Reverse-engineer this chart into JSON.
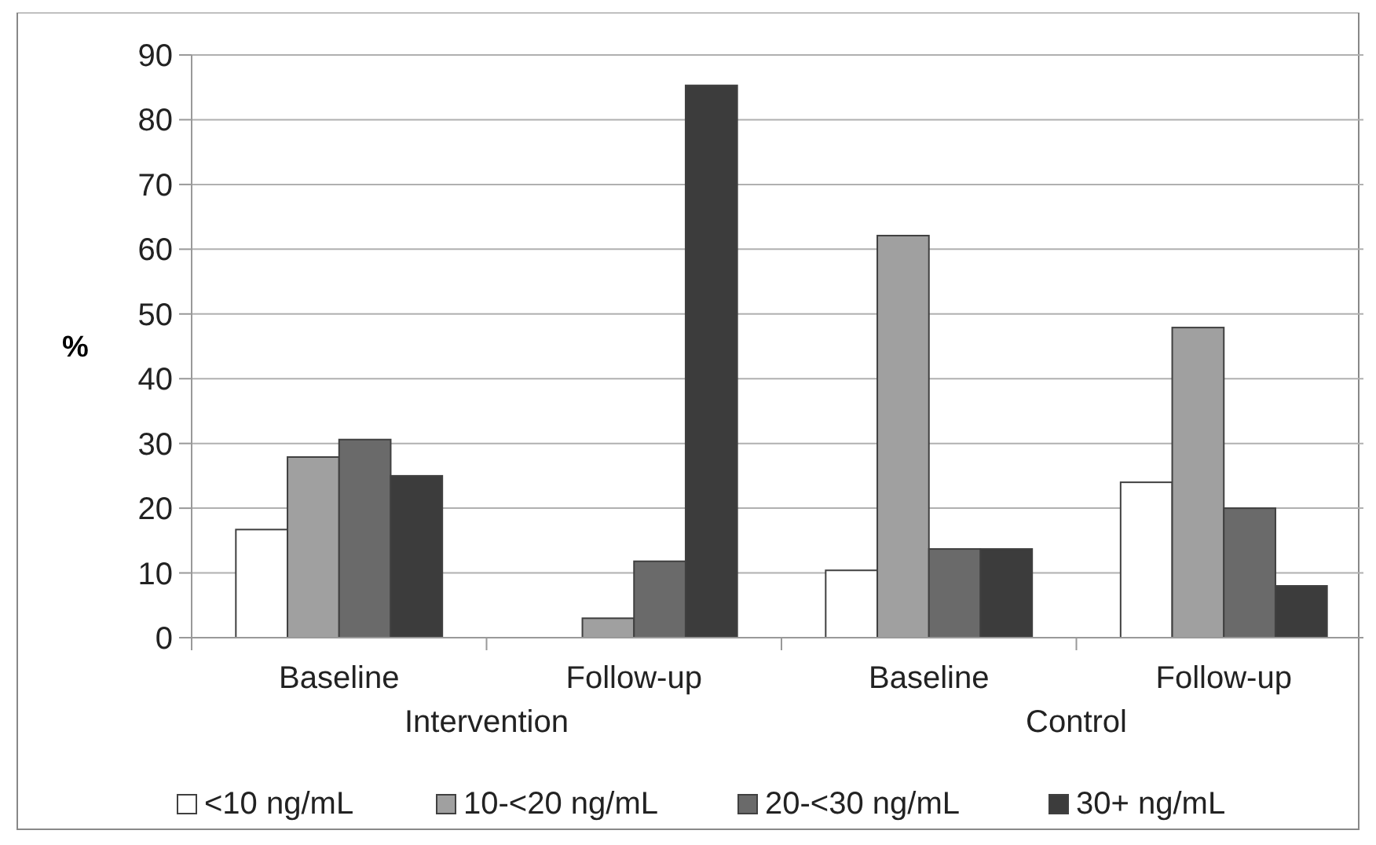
{
  "chart_data": {
    "type": "bar",
    "ylabel": "%",
    "categories": [
      "Baseline",
      "Follow-up",
      "Baseline",
      "Follow-up"
    ],
    "annotations": [
      "Intervention",
      "Control"
    ],
    "series": [
      {
        "name": "<10 ng/mL",
        "color": "#ffffff",
        "values": [
          16.7,
          0,
          10.4,
          24.0
        ]
      },
      {
        "name": "10-<20 ng/mL",
        "color": "#a0a0a0",
        "values": [
          27.9,
          3.0,
          62.1,
          47.9
        ]
      },
      {
        "name": "20-<30 ng/mL",
        "color": "#6a6a6a",
        "values": [
          30.6,
          11.8,
          13.7,
          20.0
        ]
      },
      {
        "name": "30+ ng/mL",
        "color": "#3c3c3c",
        "values": [
          25.0,
          85.3,
          13.7,
          8.0
        ]
      }
    ],
    "ylim": [
      0,
      90
    ],
    "yticks": [
      0,
      10,
      20,
      30,
      40,
      50,
      60,
      70,
      80,
      90
    ],
    "grid": "y",
    "legend": "bottom"
  }
}
